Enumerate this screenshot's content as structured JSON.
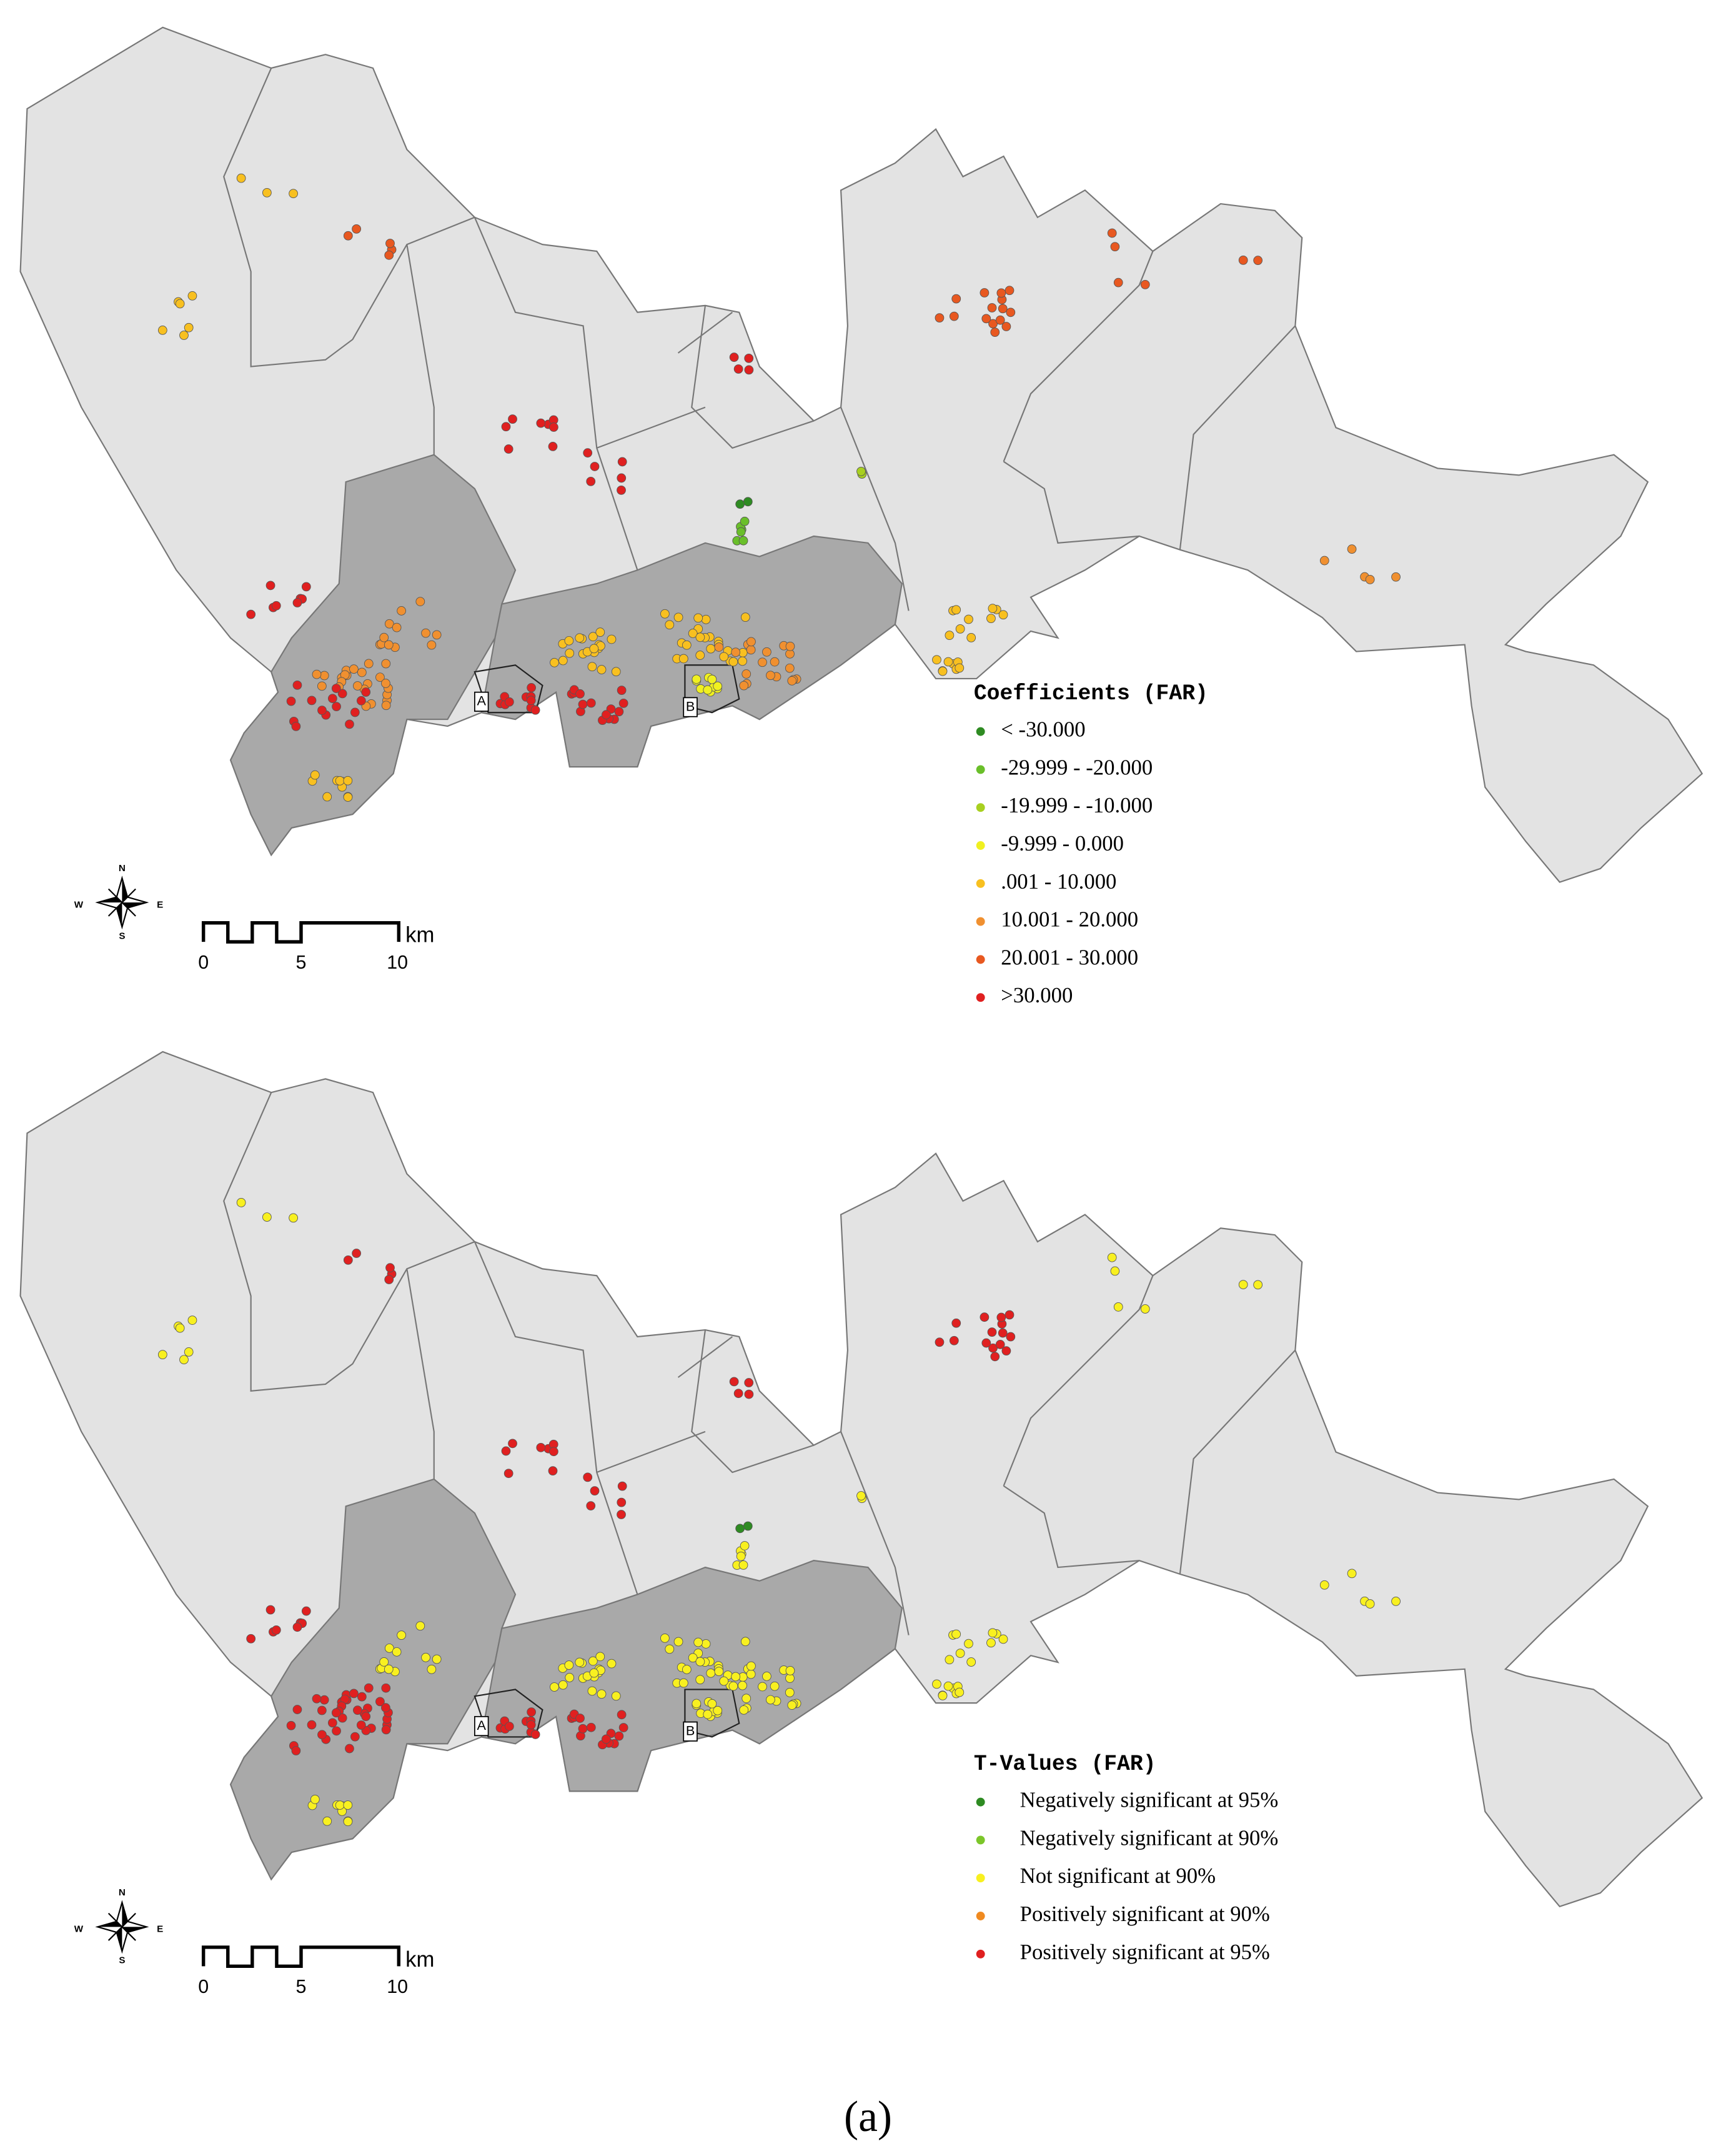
{
  "maps": [
    {
      "legend": {
        "title": "Coefficients (FAR)",
        "items": [
          {
            "label": "< -30.000",
            "color": "#2e8b22"
          },
          {
            "label": "-29.999 - -20.000",
            "color": "#6abf2a"
          },
          {
            "label": "-19.999 - -10.000",
            "color": "#a8d020"
          },
          {
            "label": "-9.999 - 0.000",
            "color": "#f0f020"
          },
          {
            "label": ".001 - 10.000",
            "color": "#f8c020"
          },
          {
            "label": "10.001 - 20.000",
            "color": "#f09030"
          },
          {
            "label": "20.001 - 30.000",
            "color": "#e85820"
          },
          {
            "label": ">30.000",
            "color": "#e02020"
          }
        ]
      },
      "scale_bar": {
        "labels": [
          "0",
          "5",
          "10"
        ],
        "unit": "km"
      },
      "compass": [
        "N",
        "S",
        "E",
        "W"
      ],
      "areas": [
        "A",
        "B"
      ]
    },
    {
      "legend": {
        "title": "T-Values (FAR)",
        "items": [
          {
            "label": "Negatively significant at 95%",
            "color": "#2e8b22"
          },
          {
            "label": "Negatively significant at 90%",
            "color": "#7cc62a"
          },
          {
            "label": "Not significant at 90%",
            "color": "#f8f020"
          },
          {
            "label": "Positively significant at 90%",
            "color": "#f08a20"
          },
          {
            "label": "Positively significant at 95%",
            "color": "#e02020"
          }
        ]
      },
      "scale_bar": {
        "labels": [
          "0",
          "5",
          "10"
        ],
        "unit": "km"
      },
      "compass": [
        "N",
        "S",
        "E",
        "W"
      ],
      "areas": [
        "A",
        "B"
      ]
    }
  ],
  "caption": "(a)"
}
